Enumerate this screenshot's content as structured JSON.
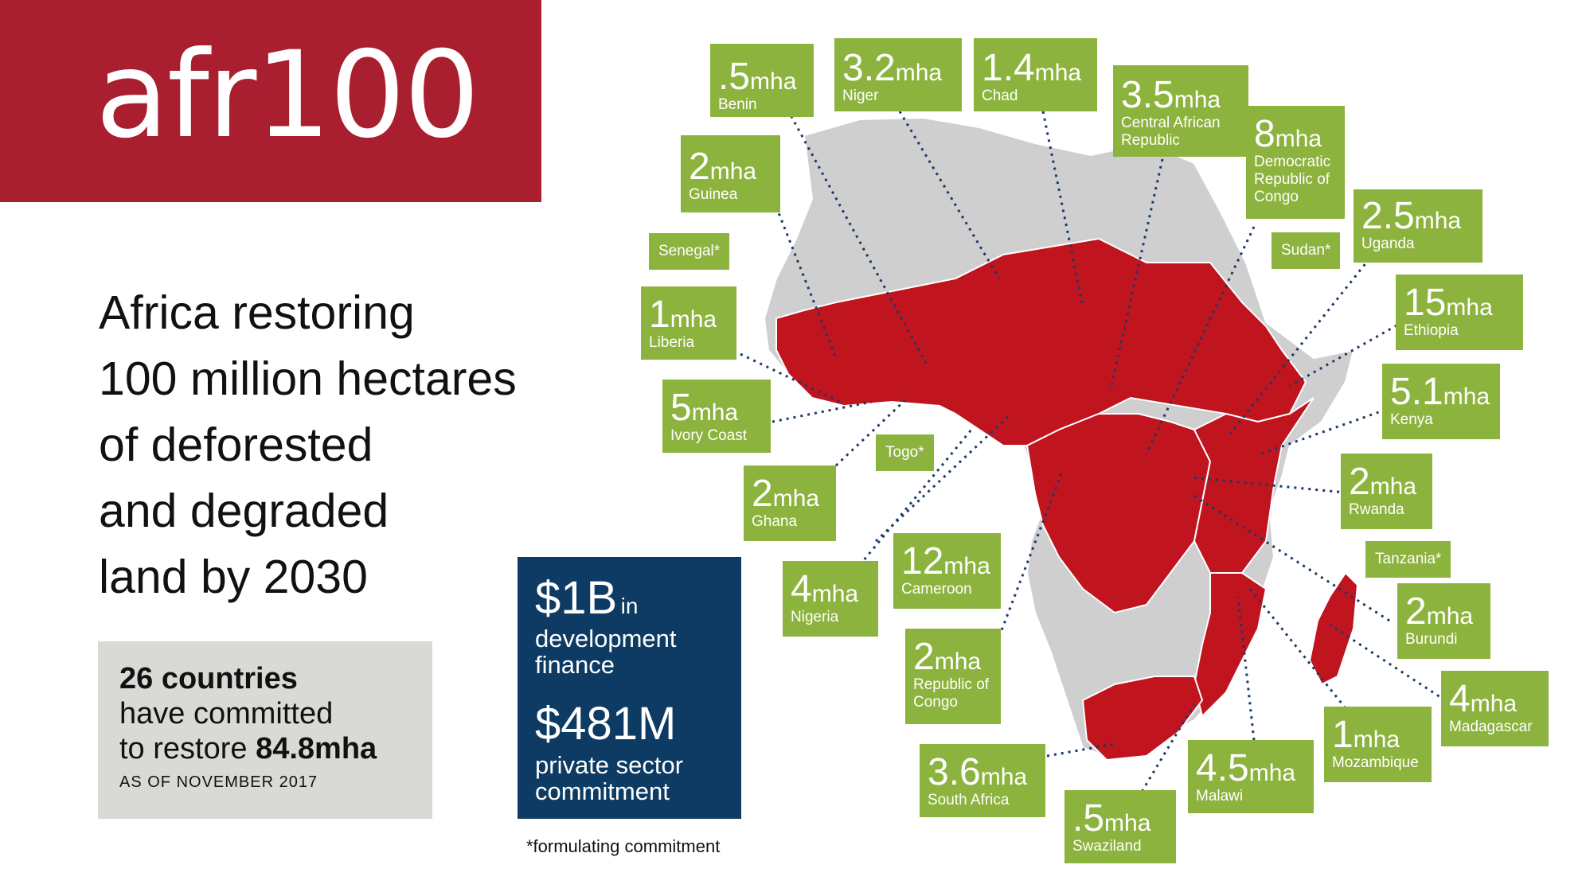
{
  "brand": {
    "logo_text": "afr100",
    "logo_color": "#a91f2f"
  },
  "headline": {
    "lines": [
      "Africa restoring",
      "100 million hectares",
      "of deforested",
      "and degraded",
      "land by 2030"
    ]
  },
  "stats": {
    "countries": "26 countries",
    "line2": "have committed",
    "line3_prefix": "to restore",
    "line3_value": "84.8mha",
    "as_of": "AS OF NOVEMBER 2017"
  },
  "finance": {
    "amount1": "$1B",
    "amount1_suffix": "in",
    "desc1a": "development",
    "desc1b": "finance",
    "amount2": "$481M",
    "desc2a": "private sector",
    "desc2b": "commitment"
  },
  "footnote": "*formulating commitment",
  "colors": {
    "committed_country": "#c0141f",
    "other_country": "#cfcfcf",
    "label_green": "#8cb33d",
    "leader_line": "#1a3a66",
    "finance_blue": "#0d3b63"
  },
  "countries": [
    {
      "name": "Benin",
      "value": ".5",
      "unit": "mha"
    },
    {
      "name": "Niger",
      "value": "3.2",
      "unit": "mha"
    },
    {
      "name": "Chad",
      "value": "1.4",
      "unit": "mha"
    },
    {
      "name": "Central African Republic",
      "value": "3.5",
      "unit": "mha"
    },
    {
      "name": "Democratic Republic of Congo",
      "value": "8",
      "unit": "mha"
    },
    {
      "name": "Guinea",
      "value": "2",
      "unit": "mha"
    },
    {
      "name": "Uganda",
      "value": "2.5",
      "unit": "mha"
    },
    {
      "name": "Liberia",
      "value": "1",
      "unit": "mha"
    },
    {
      "name": "Ethiopia",
      "value": "15",
      "unit": "mha"
    },
    {
      "name": "Ivory Coast",
      "value": "5",
      "unit": "mha"
    },
    {
      "name": "Kenya",
      "value": "5.1",
      "unit": "mha"
    },
    {
      "name": "Ghana",
      "value": "2",
      "unit": "mha"
    },
    {
      "name": "Rwanda",
      "value": "2",
      "unit": "mha"
    },
    {
      "name": "Cameroon",
      "value": "12",
      "unit": "mha"
    },
    {
      "name": "Nigeria",
      "value": "4",
      "unit": "mha"
    },
    {
      "name": "Burundi",
      "value": "2",
      "unit": "mha"
    },
    {
      "name": "Republic of Congo",
      "value": "2",
      "unit": "mha"
    },
    {
      "name": "Madagascar",
      "value": "4",
      "unit": "mha"
    },
    {
      "name": "Mozambique",
      "value": "1",
      "unit": "mha"
    },
    {
      "name": "Malawi",
      "value": "4.5",
      "unit": "mha"
    },
    {
      "name": "South Africa",
      "value": "3.6",
      "unit": "mha"
    },
    {
      "name": "Swaziland",
      "value": ".5",
      "unit": "mha"
    }
  ],
  "formulating": [
    "Senegal*",
    "Sudan*",
    "Togo*",
    "Tanzania*"
  ]
}
